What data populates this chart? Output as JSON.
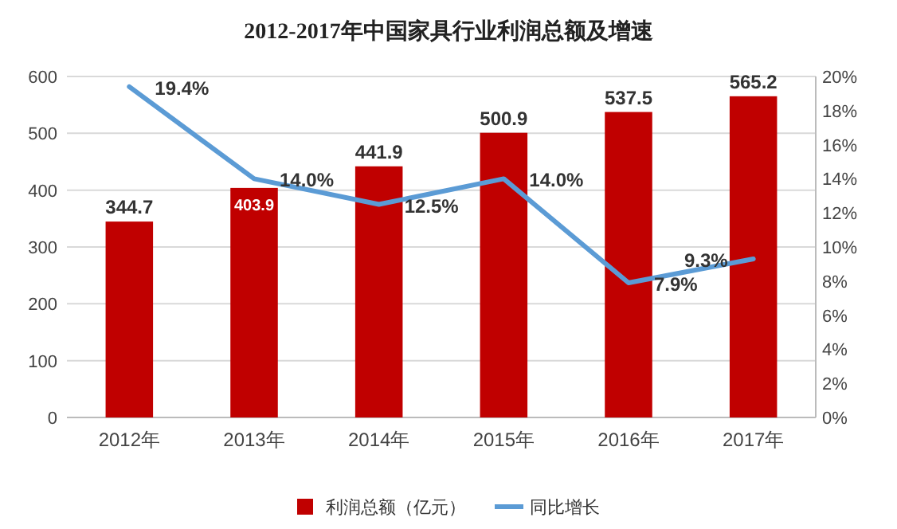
{
  "chart_data": {
    "type": "bar",
    "title": "2012-2017年中国家具行业利润总额及增速",
    "categories": [
      "2012年",
      "2013年",
      "2014年",
      "2015年",
      "2016年",
      "2017年"
    ],
    "series": [
      {
        "name": "利润总额（亿元）",
        "type": "bar",
        "color": "#c00000",
        "values": [
          344.7,
          403.9,
          441.9,
          500.9,
          537.5,
          565.2
        ],
        "data_labels": true
      },
      {
        "name": "同比增长",
        "type": "line",
        "axis": "y2",
        "color": "#5b9bd5",
        "values": [
          19.4,
          14.0,
          12.5,
          14.0,
          7.9,
          9.3
        ],
        "value_labels": [
          "19.4%",
          "14.0%",
          "12.5%",
          "14.0%",
          "7.9%",
          "9.3%"
        ]
      }
    ],
    "ylim": [
      0,
      600
    ],
    "yticks": [
      0,
      100,
      200,
      300,
      400,
      500,
      600
    ],
    "y2lim": [
      0,
      20
    ],
    "y2ticks": [
      {
        "value": 0,
        "label": "0%"
      },
      {
        "value": 2,
        "label": "2%"
      },
      {
        "value": 4,
        "label": "4%"
      },
      {
        "value": 6,
        "label": "6%"
      },
      {
        "value": 8,
        "label": "8%"
      },
      {
        "value": 10,
        "label": "10%"
      },
      {
        "value": 12,
        "label": "12%"
      },
      {
        "value": 14,
        "label": "14%"
      },
      {
        "value": 16,
        "label": "16%"
      },
      {
        "value": 18,
        "label": "18%"
      },
      {
        "value": 20,
        "label": "20%"
      }
    ],
    "grid": "y",
    "legend": "bottom",
    "marker": "none",
    "line_style": "solid"
  }
}
